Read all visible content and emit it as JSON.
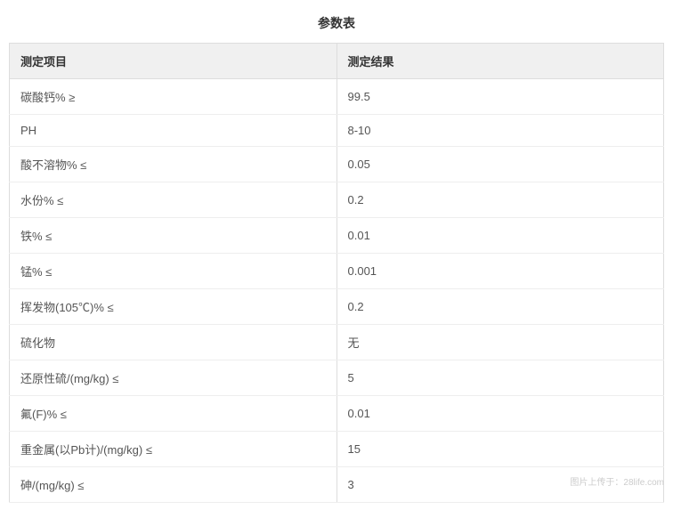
{
  "title": "参数表",
  "table": {
    "columns": [
      "测定项目",
      "测定结果"
    ],
    "rows": [
      [
        "碳酸钙% ≥",
        "99.5"
      ],
      [
        "PH",
        "8-10"
      ],
      [
        "酸不溶物% ≤",
        "0.05"
      ],
      [
        "水份% ≤",
        "0.2"
      ],
      [
        "铁% ≤",
        "0.01"
      ],
      [
        "锰% ≤",
        "0.001"
      ],
      [
        "挥发物(105℃)% ≤",
        "0.2"
      ],
      [
        "硫化物",
        "无"
      ],
      [
        "还原性硫/(mg/kg) ≤",
        "5"
      ],
      [
        "氟(F)% ≤",
        "0.01"
      ],
      [
        "重金属(以Pb计)/(mg/kg) ≤",
        "15"
      ],
      [
        "砷/(mg/kg) ≤",
        "3"
      ]
    ],
    "header_bg_color": "#f0f0f0",
    "border_color": "#dddddd",
    "row_border_color": "#eeeeee",
    "text_color": "#555555",
    "header_text_color": "#333333",
    "font_size": 13,
    "header_font_size": 13
  },
  "watermark": "图片上传于：28life.com"
}
